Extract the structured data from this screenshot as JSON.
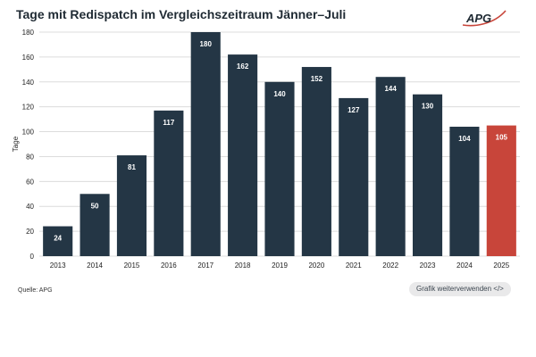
{
  "header": {
    "title": "Tage mit Redispatch im Vergleichszeitraum Jänner–Juli",
    "logo_text": "APG"
  },
  "footer": {
    "source": "Quelle: APG",
    "reuse_label": "Grafik weiterverwenden",
    "reuse_icon": "</>"
  },
  "colors": {
    "bar": "#243645",
    "highlight": "#c8453a",
    "grid": "#dcdcdc",
    "logo": "#c8453a"
  },
  "chart_data": {
    "type": "bar",
    "title": "Tage mit Redispatch im Vergleichszeitraum Jänner–Juli",
    "xlabel": "",
    "ylabel": "Tage",
    "categories": [
      "2013",
      "2014",
      "2015",
      "2016",
      "2017",
      "2018",
      "2019",
      "2020",
      "2021",
      "2022",
      "2023",
      "2024",
      "2025"
    ],
    "values": [
      24,
      50,
      81,
      117,
      180,
      162,
      140,
      152,
      127,
      144,
      130,
      104,
      105
    ],
    "highlight_index": 12,
    "ylim": [
      0,
      180
    ],
    "yticks": [
      0,
      20,
      40,
      60,
      80,
      100,
      120,
      140,
      160,
      180
    ],
    "grid": true
  }
}
